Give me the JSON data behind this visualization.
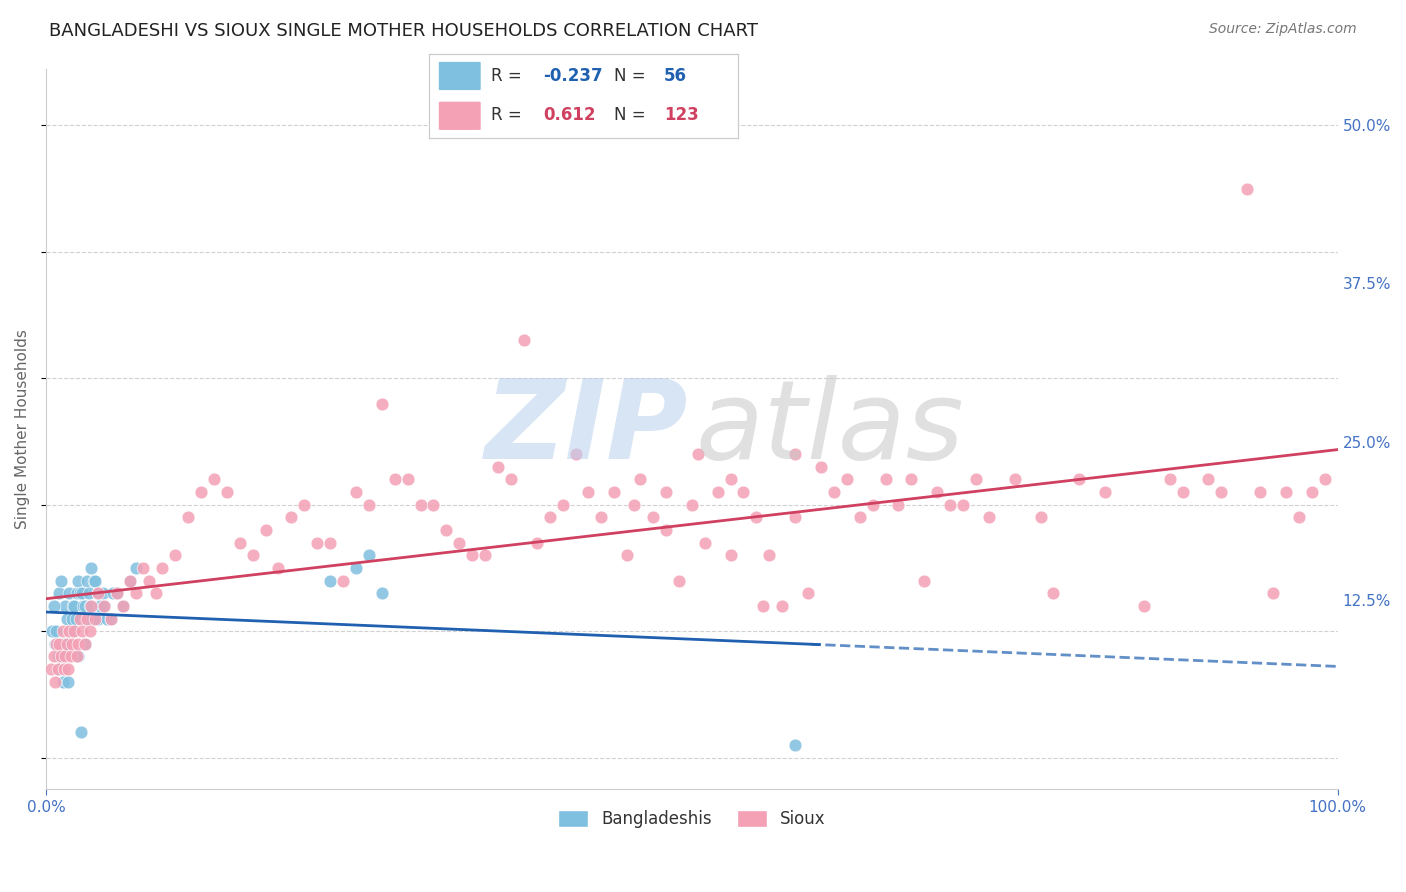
{
  "title": "BANGLADESHI VS SIOUX SINGLE MOTHER HOUSEHOLDS CORRELATION CHART",
  "source": "Source: ZipAtlas.com",
  "ylabel": "Single Mother Households",
  "xlim": [
    0.0,
    1.0
  ],
  "ylim": [
    -0.025,
    0.545
  ],
  "ytick_positions": [
    0.0,
    0.125,
    0.25,
    0.375,
    0.5
  ],
  "ytick_labels": [
    "",
    "12.5%",
    "25.0%",
    "37.5%",
    "50.0%"
  ],
  "grid_color": "#cccccc",
  "background_color": "#ffffff",
  "blue_color": "#7fbfdf",
  "blue_line_color": "#2060b0",
  "pink_color": "#f4a0b5",
  "pink_line_color": "#d04060",
  "axis_label_color": "#4472c4",
  "title_color": "#222222",
  "legend_R_blue": "-0.237",
  "legend_N_blue": "56",
  "legend_R_pink": "0.612",
  "legend_N_pink": "123",
  "blue_scatter_x": [
    0.005,
    0.007,
    0.008,
    0.009,
    0.01,
    0.01,
    0.011,
    0.012,
    0.013,
    0.014,
    0.015,
    0.015,
    0.016,
    0.017,
    0.018,
    0.019,
    0.02,
    0.02,
    0.021,
    0.022,
    0.023,
    0.024,
    0.025,
    0.025,
    0.026,
    0.027,
    0.028,
    0.029,
    0.03,
    0.03,
    0.031,
    0.032,
    0.033,
    0.034,
    0.035,
    0.036,
    0.037,
    0.038,
    0.04,
    0.04,
    0.042,
    0.044,
    0.045,
    0.047,
    0.05,
    0.052,
    0.055,
    0.06,
    0.065,
    0.07,
    0.22,
    0.24,
    0.25,
    0.26,
    0.58,
    0.006
  ],
  "blue_scatter_y": [
    0.1,
    0.09,
    0.1,
    0.08,
    0.13,
    0.08,
    0.07,
    0.14,
    0.06,
    0.09,
    0.12,
    0.09,
    0.11,
    0.06,
    0.13,
    0.1,
    0.11,
    0.1,
    0.12,
    0.12,
    0.11,
    0.13,
    0.14,
    0.08,
    0.13,
    0.02,
    0.13,
    0.12,
    0.12,
    0.09,
    0.11,
    0.14,
    0.13,
    0.12,
    0.15,
    0.11,
    0.14,
    0.14,
    0.13,
    0.11,
    0.12,
    0.13,
    0.12,
    0.11,
    0.11,
    0.13,
    0.13,
    0.12,
    0.14,
    0.15,
    0.14,
    0.15,
    0.16,
    0.13,
    0.01,
    0.12
  ],
  "pink_scatter_x": [
    0.004,
    0.006,
    0.007,
    0.008,
    0.009,
    0.01,
    0.012,
    0.013,
    0.014,
    0.015,
    0.016,
    0.017,
    0.018,
    0.019,
    0.02,
    0.022,
    0.024,
    0.025,
    0.026,
    0.028,
    0.03,
    0.032,
    0.034,
    0.035,
    0.038,
    0.04,
    0.045,
    0.05,
    0.055,
    0.06,
    0.065,
    0.07,
    0.075,
    0.08,
    0.085,
    0.09,
    0.1,
    0.11,
    0.12,
    0.13,
    0.14,
    0.15,
    0.16,
    0.17,
    0.18,
    0.19,
    0.2,
    0.21,
    0.22,
    0.23,
    0.24,
    0.25,
    0.26,
    0.27,
    0.28,
    0.29,
    0.3,
    0.31,
    0.32,
    0.33,
    0.34,
    0.35,
    0.36,
    0.37,
    0.38,
    0.39,
    0.4,
    0.41,
    0.42,
    0.43,
    0.44,
    0.45,
    0.46,
    0.47,
    0.48,
    0.49,
    0.5,
    0.51,
    0.52,
    0.53,
    0.54,
    0.55,
    0.56,
    0.57,
    0.58,
    0.59,
    0.6,
    0.61,
    0.62,
    0.63,
    0.64,
    0.65,
    0.66,
    0.67,
    0.68,
    0.69,
    0.7,
    0.71,
    0.72,
    0.73,
    0.75,
    0.77,
    0.78,
    0.8,
    0.82,
    0.85,
    0.87,
    0.88,
    0.9,
    0.91,
    0.93,
    0.94,
    0.95,
    0.96,
    0.97,
    0.98,
    0.99,
    0.455,
    0.48,
    0.505,
    0.53,
    0.555,
    0.58
  ],
  "pink_scatter_y": [
    0.07,
    0.08,
    0.06,
    0.09,
    0.07,
    0.09,
    0.08,
    0.1,
    0.07,
    0.08,
    0.09,
    0.07,
    0.1,
    0.08,
    0.09,
    0.1,
    0.08,
    0.09,
    0.11,
    0.1,
    0.09,
    0.11,
    0.1,
    0.12,
    0.11,
    0.13,
    0.12,
    0.11,
    0.13,
    0.12,
    0.14,
    0.13,
    0.15,
    0.14,
    0.13,
    0.15,
    0.16,
    0.19,
    0.21,
    0.22,
    0.21,
    0.17,
    0.16,
    0.18,
    0.15,
    0.19,
    0.2,
    0.17,
    0.17,
    0.14,
    0.21,
    0.2,
    0.28,
    0.22,
    0.22,
    0.2,
    0.2,
    0.18,
    0.17,
    0.16,
    0.16,
    0.23,
    0.22,
    0.33,
    0.17,
    0.19,
    0.2,
    0.24,
    0.21,
    0.19,
    0.21,
    0.16,
    0.22,
    0.19,
    0.18,
    0.14,
    0.2,
    0.17,
    0.21,
    0.16,
    0.21,
    0.19,
    0.16,
    0.12,
    0.19,
    0.13,
    0.23,
    0.21,
    0.22,
    0.19,
    0.2,
    0.22,
    0.2,
    0.22,
    0.14,
    0.21,
    0.2,
    0.2,
    0.22,
    0.19,
    0.22,
    0.19,
    0.13,
    0.22,
    0.21,
    0.12,
    0.22,
    0.21,
    0.22,
    0.21,
    0.45,
    0.21,
    0.13,
    0.21,
    0.19,
    0.21,
    0.22,
    0.2,
    0.21,
    0.24,
    0.22,
    0.12,
    0.24
  ]
}
